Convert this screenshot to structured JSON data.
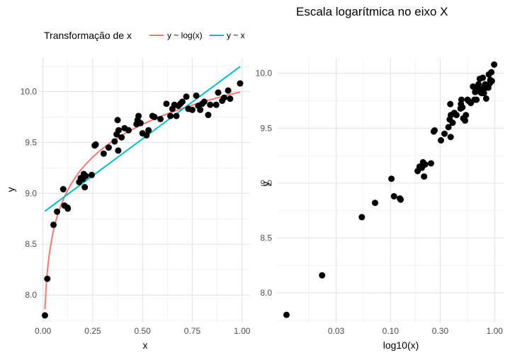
{
  "chart_data": [
    {
      "type": "scatter",
      "title": "",
      "xlabel": "x",
      "ylabel": "y",
      "xlim": [
        -0.02,
        1.04
      ],
      "ylim": [
        7.73,
        10.33
      ],
      "x_ticks": [
        0.0,
        0.25,
        0.5,
        0.75,
        1.0
      ],
      "x_tick_labels": [
        "0.00",
        "0.25",
        "0.50",
        "0.75",
        "1.00"
      ],
      "y_ticks": [
        8.0,
        8.5,
        9.0,
        9.5,
        10.0
      ],
      "y_tick_labels": [
        "8.0",
        "8.5",
        "9.0",
        "9.5",
        "10.0"
      ],
      "grid": true,
      "legend": {
        "title": "Transformação de x",
        "position": "top",
        "entries": [
          {
            "label": "y ~ log(x)",
            "color": "#F8766D"
          },
          {
            "label": "y ~ x",
            "color": "#00BFC4"
          }
        ]
      },
      "points": {
        "x": [
          0.01,
          0.022,
          0.053,
          0.071,
          0.102,
          0.108,
          0.123,
          0.125,
          0.182,
          0.19,
          0.2,
          0.205,
          0.21,
          0.215,
          0.245,
          0.26,
          0.265,
          0.305,
          0.33,
          0.36,
          0.37,
          0.375,
          0.378,
          0.38,
          0.395,
          0.41,
          0.43,
          0.47,
          0.475,
          0.48,
          0.49,
          0.5,
          0.52,
          0.53,
          0.55,
          0.56,
          0.59,
          0.62,
          0.64,
          0.65,
          0.66,
          0.67,
          0.68,
          0.69,
          0.7,
          0.72,
          0.73,
          0.75,
          0.77,
          0.78,
          0.79,
          0.8,
          0.81,
          0.83,
          0.84,
          0.87,
          0.88,
          0.9,
          0.91,
          0.93,
          0.94,
          0.99
        ],
        "y": [
          7.8,
          8.16,
          8.69,
          8.82,
          9.04,
          8.88,
          8.86,
          8.85,
          9.11,
          9.15,
          9.14,
          9.19,
          9.06,
          9.17,
          9.18,
          9.47,
          9.48,
          9.39,
          9.45,
          9.51,
          9.58,
          9.72,
          9.42,
          9.62,
          9.55,
          9.64,
          9.62,
          9.68,
          9.72,
          9.76,
          9.69,
          9.59,
          9.57,
          9.62,
          9.76,
          9.75,
          9.73,
          9.88,
          9.76,
          9.83,
          9.87,
          9.76,
          9.86,
          9.88,
          9.9,
          9.95,
          9.83,
          9.82,
          9.96,
          9.86,
          9.82,
          9.88,
          9.9,
          9.77,
          9.87,
          9.87,
          9.99,
          9.91,
          9.94,
          10.01,
          9.93,
          10.08
        ]
      },
      "series": [
        {
          "name": "y ~ log(x)",
          "color": "#F8766D",
          "model": "log",
          "intercept": 10.0,
          "slope": 0.465
        },
        {
          "name": "y ~ x",
          "color": "#00BFC4",
          "model": "linear",
          "intercept": 8.81,
          "slope": 1.45
        }
      ]
    },
    {
      "type": "scatter",
      "title": "Escala logarítmica no eixo X",
      "xlabel": "log10(x)",
      "ylabel": "y",
      "x_scale": "log10",
      "xlim": [
        0.0081,
        1.24
      ],
      "ylim": [
        7.73,
        10.14
      ],
      "x_ticks": [
        0.03,
        0.1,
        0.3,
        1.0
      ],
      "x_tick_labels": [
        "0.03",
        "0.10",
        "0.30",
        "1.00"
      ],
      "y_ticks": [
        8.0,
        8.5,
        9.0,
        9.5,
        10.0
      ],
      "y_tick_labels": [
        "8.0",
        "8.5",
        "9.0",
        "9.5",
        "10.0"
      ],
      "grid": true,
      "points_source": "same as first panel"
    }
  ]
}
